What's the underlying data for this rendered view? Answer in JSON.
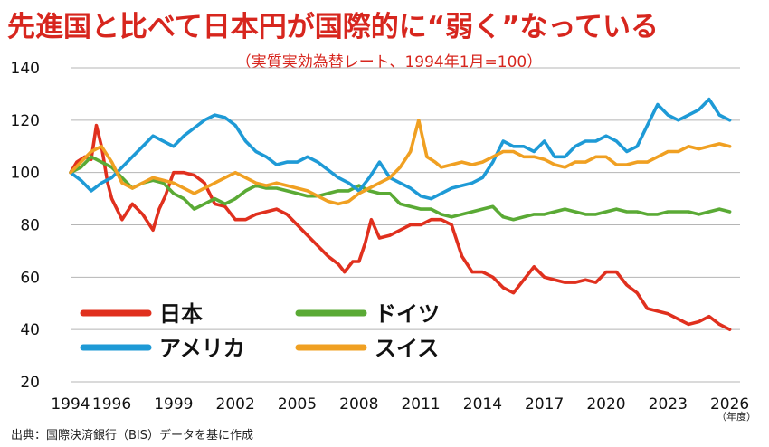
{
  "title": "先進国と比べて日本円が国際的に“弱く”なっている",
  "subtitle": "（実質実効為替レート、1994年1月=100）",
  "source": "出典：国際決済銀行（BIS）データを基に作成",
  "x_unit": "（年度）",
  "chart_data": {
    "type": "line",
    "ylim": [
      20,
      140
    ],
    "yticks": [
      20,
      40,
      60,
      80,
      100,
      120,
      140
    ],
    "xlim": [
      1994,
      2026.5
    ],
    "xticks": [
      1994,
      1996,
      1999,
      2002,
      2005,
      2008,
      2011,
      2014,
      2017,
      2020,
      2023,
      2026
    ],
    "grid": true,
    "legend_position": "bottom-left",
    "series": [
      {
        "name": "日本",
        "color": "#e0301e",
        "x": [
          1994,
          1994.3,
          1994.7,
          1995.0,
          1995.25,
          1995.5,
          1995.8,
          1996.0,
          1996.5,
          1997.0,
          1997.5,
          1998.0,
          1998.3,
          1998.6,
          1999.0,
          1999.5,
          2000.0,
          2000.5,
          2001.0,
          2001.5,
          2002.0,
          2002.5,
          2003.0,
          2003.5,
          2004.0,
          2004.5,
          2005.0,
          2005.5,
          2006.0,
          2006.5,
          2007.0,
          2007.3,
          2007.7,
          2008.0,
          2008.3,
          2008.6,
          2009.0,
          2009.5,
          2010.0,
          2010.5,
          2011.0,
          2011.5,
          2012.0,
          2012.5,
          2013.0,
          2013.5,
          2014.0,
          2014.5,
          2015.0,
          2015.5,
          2016.0,
          2016.5,
          2017.0,
          2017.5,
          2018.0,
          2018.5,
          2019.0,
          2019.5,
          2020.0,
          2020.5,
          2021.0,
          2021.5,
          2022.0,
          2022.5,
          2023.0,
          2023.5,
          2024.0,
          2024.5,
          2025.0,
          2025.5,
          2026.0
        ],
        "values": [
          100,
          104,
          106,
          105,
          118,
          110,
          96,
          90,
          82,
          88,
          84,
          78,
          86,
          91,
          100,
          100,
          99,
          96,
          88,
          87,
          82,
          82,
          84,
          85,
          86,
          84,
          80,
          76,
          72,
          68,
          65,
          62,
          66,
          66,
          73,
          82,
          75,
          76,
          78,
          80,
          80,
          82,
          82,
          80,
          68,
          62,
          62,
          60,
          56,
          54,
          59,
          64,
          60,
          59,
          58,
          58,
          59,
          58,
          62,
          62,
          57,
          54,
          48,
          47,
          46,
          44,
          42,
          43,
          45,
          42,
          40
        ]
      },
      {
        "name": "ドイツ",
        "color": "#5aaa35",
        "x": [
          1994,
          1994.5,
          1995.0,
          1995.5,
          1996.0,
          1996.5,
          1997.0,
          1997.5,
          1998.0,
          1998.5,
          1999.0,
          1999.5,
          2000.0,
          2000.5,
          2001.0,
          2001.5,
          2002.0,
          2002.5,
          2003.0,
          2003.5,
          2004.0,
          2004.5,
          2005.0,
          2005.5,
          2006.0,
          2006.5,
          2007.0,
          2007.5,
          2008.0,
          2008.5,
          2009.0,
          2009.5,
          2010.0,
          2010.5,
          2011.0,
          2011.5,
          2012.0,
          2012.5,
          2013.0,
          2013.5,
          2014.0,
          2014.5,
          2015.0,
          2015.5,
          2016.0,
          2016.5,
          2017.0,
          2017.5,
          2018.0,
          2018.5,
          2019.0,
          2019.5,
          2020.0,
          2020.5,
          2021.0,
          2021.5,
          2022.0,
          2022.5,
          2023.0,
          2023.5,
          2024.0,
          2024.5,
          2025.0,
          2025.5,
          2026.0
        ],
        "values": [
          100,
          102,
          106,
          104,
          102,
          98,
          94,
          96,
          97,
          96,
          92,
          90,
          86,
          88,
          90,
          88,
          90,
          93,
          95,
          94,
          94,
          93,
          92,
          91,
          91,
          92,
          93,
          93,
          95,
          93,
          92,
          92,
          88,
          87,
          86,
          86,
          84,
          83,
          84,
          85,
          86,
          87,
          83,
          82,
          83,
          84,
          84,
          85,
          86,
          85,
          84,
          84,
          85,
          86,
          85,
          85,
          84,
          84,
          85,
          85,
          85,
          84,
          85,
          86,
          85
        ]
      },
      {
        "name": "アメリカ",
        "color": "#1e9ad6",
        "x": [
          1994,
          1994.5,
          1995.0,
          1995.5,
          1996.0,
          1996.5,
          1997.0,
          1997.5,
          1998.0,
          1998.5,
          1999.0,
          1999.5,
          2000.0,
          2000.5,
          2001.0,
          2001.5,
          2002.0,
          2002.5,
          2003.0,
          2003.5,
          2004.0,
          2004.5,
          2005.0,
          2005.5,
          2006.0,
          2006.5,
          2007.0,
          2007.5,
          2008.0,
          2008.5,
          2009.0,
          2009.5,
          2010.0,
          2010.5,
          2011.0,
          2011.5,
          2012.0,
          2012.5,
          2013.0,
          2013.5,
          2014.0,
          2014.5,
          2015.0,
          2015.5,
          2016.0,
          2016.5,
          2017.0,
          2017.5,
          2018.0,
          2018.5,
          2019.0,
          2019.5,
          2020.0,
          2020.5,
          2021.0,
          2021.5,
          2022.0,
          2022.5,
          2023.0,
          2023.5,
          2024.0,
          2024.5,
          2025.0,
          2025.5,
          2026.0
        ],
        "values": [
          100,
          97,
          93,
          96,
          98,
          102,
          106,
          110,
          114,
          112,
          110,
          114,
          117,
          120,
          122,
          121,
          118,
          112,
          108,
          106,
          103,
          104,
          104,
          106,
          104,
          101,
          98,
          96,
          93,
          98,
          104,
          98,
          96,
          94,
          91,
          90,
          92,
          94,
          95,
          96,
          98,
          104,
          112,
          110,
          110,
          108,
          112,
          106,
          106,
          110,
          112,
          112,
          114,
          112,
          108,
          110,
          118,
          126,
          122,
          120,
          122,
          124,
          128,
          122,
          120
        ]
      },
      {
        "name": "スイス",
        "color": "#f0a022",
        "x": [
          1994,
          1994.5,
          1995.0,
          1995.5,
          1996.0,
          1996.5,
          1997.0,
          1997.5,
          1998.0,
          1998.5,
          1999.0,
          1999.5,
          2000.0,
          2000.5,
          2001.0,
          2001.5,
          2002.0,
          2002.5,
          2003.0,
          2003.5,
          2004.0,
          2004.5,
          2005.0,
          2005.5,
          2006.0,
          2006.5,
          2007.0,
          2007.5,
          2008.0,
          2008.5,
          2009.0,
          2009.5,
          2010.0,
          2010.5,
          2010.9,
          2011.3,
          2011.7,
          2012.0,
          2012.5,
          2013.0,
          2013.5,
          2014.0,
          2014.5,
          2015.0,
          2015.5,
          2016.0,
          2016.5,
          2017.0,
          2017.5,
          2018.0,
          2018.5,
          2019.0,
          2019.5,
          2020.0,
          2020.5,
          2021.0,
          2021.5,
          2022.0,
          2022.5,
          2023.0,
          2023.5,
          2024.0,
          2024.5,
          2025.0,
          2025.5,
          2026.0
        ],
        "values": [
          100,
          104,
          108,
          110,
          104,
          96,
          94,
          96,
          98,
          97,
          96,
          94,
          92,
          94,
          96,
          98,
          100,
          98,
          96,
          95,
          96,
          95,
          94,
          93,
          91,
          89,
          88,
          89,
          92,
          94,
          96,
          98,
          102,
          108,
          120,
          106,
          104,
          102,
          103,
          104,
          103,
          104,
          106,
          108,
          108,
          106,
          106,
          105,
          103,
          102,
          104,
          104,
          106,
          106,
          103,
          103,
          104,
          104,
          106,
          108,
          108,
          110,
          109,
          110,
          111,
          110
        ]
      }
    ]
  }
}
